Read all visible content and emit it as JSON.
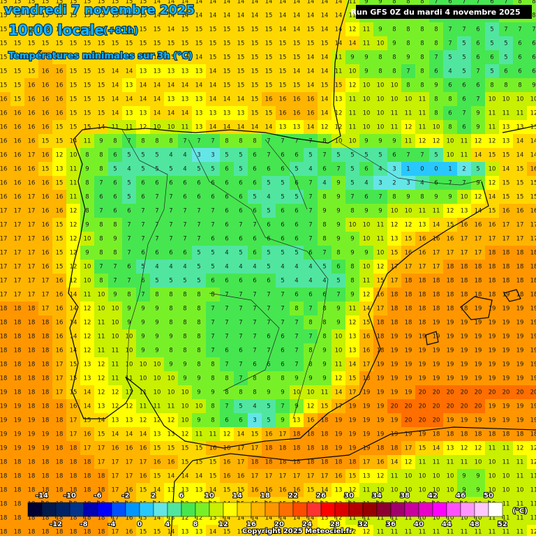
{
  "header": {
    "title": "vendredi 7 novembre 2025",
    "time": "10:00 locale",
    "lead": "(+81h)",
    "subtitle": "Températures minimales sur 3h (°C)",
    "run": "Run GFS 0Z du mardi 4 novembre 2025"
  },
  "colorbar": {
    "lim": [
      -16,
      52
    ],
    "unit": "(°C)",
    "ticks_top": [
      -14,
      -10,
      -6,
      -2,
      2,
      6,
      10,
      14,
      18,
      22,
      26,
      30,
      34,
      38,
      42,
      46,
      50
    ],
    "ticks_bottom": [
      -12,
      -8,
      -4,
      0,
      4,
      8,
      12,
      16,
      20,
      24,
      28,
      32,
      36,
      40,
      44,
      48,
      52
    ],
    "colors": [
      "#000033",
      "#001a4d",
      "#002266",
      "#00338a",
      "#0000b4",
      "#0000ff",
      "#0050ff",
      "#0096ff",
      "#28c8ff",
      "#64e6e6",
      "#50e6a0",
      "#46e650",
      "#78f028",
      "#c8f000",
      "#ffff00",
      "#ffd700",
      "#ffb400",
      "#ff9600",
      "#ff6e00",
      "#ff4b00",
      "#ff3232",
      "#ff0000",
      "#dc0000",
      "#b40000",
      "#960000",
      "#8c0032",
      "#a0006e",
      "#c800a0",
      "#e600c8",
      "#ff00ff",
      "#ff50ff",
      "#ff96ff",
      "#ffc8ff",
      "#ffffff"
    ]
  },
  "credit": "Copyright 2025 Meteociel.fr",
  "grid": {
    "rows": [
      [
        15,
        15,
        15,
        15,
        15,
        15,
        15,
        15,
        15,
        15,
        15,
        14,
        14,
        14,
        14,
        14,
        14,
        14,
        14,
        14,
        14,
        14,
        14,
        14,
        14,
        11,
        9,
        9,
        8,
        8,
        8,
        7,
        6,
        7,
        7,
        6,
        7,
        8,
        8
      ],
      [
        15,
        15,
        15,
        15,
        15,
        15,
        15,
        15,
        15,
        15,
        15,
        14,
        14,
        14,
        14,
        14,
        14,
        14,
        14,
        15,
        14,
        14,
        14,
        14,
        14,
        11,
        9,
        9,
        8,
        8,
        8,
        7,
        6,
        7,
        7,
        6,
        8,
        8,
        8
      ],
      [
        15,
        15,
        15,
        15,
        15,
        15,
        15,
        15,
        15,
        15,
        15,
        15,
        14,
        15,
        15,
        15,
        15,
        15,
        15,
        15,
        14,
        14,
        15,
        14,
        14,
        12,
        11,
        9,
        8,
        8,
        8,
        8,
        7,
        7,
        6,
        5,
        7,
        7,
        7
      ],
      [
        15,
        15,
        15,
        15,
        15,
        15,
        15,
        15,
        15,
        15,
        15,
        15,
        15,
        15,
        15,
        15,
        15,
        15,
        15,
        15,
        15,
        15,
        15,
        15,
        14,
        14,
        11,
        10,
        9,
        8,
        8,
        8,
        7,
        5,
        6,
        5,
        5,
        6,
        6
      ],
      [
        15,
        15,
        15,
        16,
        15,
        15,
        15,
        15,
        15,
        15,
        15,
        15,
        15,
        14,
        14,
        15,
        15,
        15,
        15,
        15,
        15,
        15,
        14,
        14,
        11,
        9,
        9,
        8,
        8,
        9,
        8,
        7,
        5,
        5,
        6,
        6,
        5,
        6,
        6
      ],
      [
        15,
        15,
        15,
        16,
        16,
        15,
        15,
        15,
        14,
        14,
        13,
        13,
        13,
        13,
        13,
        14,
        15,
        15,
        15,
        15,
        15,
        14,
        14,
        14,
        11,
        10,
        9,
        8,
        8,
        7,
        8,
        6,
        4,
        5,
        7,
        5,
        6,
        6,
        6
      ],
      [
        15,
        15,
        16,
        16,
        16,
        15,
        15,
        15,
        14,
        13,
        14,
        14,
        14,
        14,
        14,
        14,
        15,
        15,
        15,
        15,
        15,
        15,
        14,
        15,
        15,
        12,
        10,
        10,
        10,
        8,
        8,
        9,
        6,
        6,
        6,
        8,
        8,
        8,
        9
      ],
      [
        16,
        15,
        16,
        16,
        16,
        15,
        15,
        15,
        14,
        14,
        14,
        14,
        13,
        13,
        13,
        14,
        14,
        14,
        15,
        16,
        16,
        16,
        16,
        14,
        13,
        11,
        10,
        10,
        10,
        10,
        11,
        8,
        8,
        6,
        7,
        10,
        10,
        10,
        10
      ],
      [
        16,
        16,
        16,
        16,
        16,
        15,
        15,
        15,
        14,
        13,
        13,
        14,
        14,
        14,
        13,
        13,
        13,
        13,
        15,
        15,
        16,
        16,
        16,
        14,
        12,
        11,
        10,
        10,
        11,
        11,
        11,
        8,
        6,
        7,
        9,
        11,
        11,
        11,
        12
      ],
      [
        16,
        16,
        16,
        16,
        15,
        15,
        15,
        14,
        11,
        11,
        12,
        10,
        10,
        11,
        13,
        14,
        14,
        14,
        14,
        14,
        13,
        13,
        14,
        12,
        12,
        11,
        10,
        10,
        11,
        12,
        11,
        10,
        8,
        6,
        9,
        11,
        13,
        13,
        13
      ],
      [
        16,
        16,
        16,
        15,
        15,
        14,
        11,
        9,
        8,
        7,
        8,
        8,
        8,
        7,
        7,
        7,
        8,
        8,
        8,
        7,
        7,
        7,
        7,
        8,
        10,
        10,
        9,
        9,
        9,
        11,
        12,
        12,
        10,
        11,
        12,
        12,
        13,
        14,
        14
      ],
      [
        16,
        16,
        17,
        16,
        12,
        10,
        8,
        8,
        6,
        5,
        5,
        5,
        4,
        4,
        3,
        3,
        5,
        5,
        6,
        7,
        6,
        6,
        5,
        7,
        5,
        5,
        5,
        5,
        6,
        7,
        7,
        5,
        10,
        11,
        14,
        15,
        15,
        14,
        14
      ],
      [
        16,
        16,
        16,
        15,
        13,
        11,
        9,
        8,
        5,
        4,
        5,
        5,
        5,
        4,
        5,
        5,
        6,
        5,
        6,
        6,
        6,
        5,
        4,
        6,
        7,
        5,
        6,
        4,
        3,
        1,
        0,
        0,
        1,
        2,
        5,
        10,
        14,
        15,
        16
      ],
      [
        16,
        16,
        16,
        16,
        15,
        11,
        8,
        7,
        6,
        5,
        6,
        6,
        6,
        6,
        6,
        6,
        6,
        6,
        6,
        5,
        5,
        6,
        7,
        4,
        9,
        5,
        4,
        3,
        2,
        3,
        4,
        6,
        7,
        7,
        9,
        12,
        15,
        15,
        15
      ],
      [
        16,
        16,
        17,
        16,
        16,
        11,
        8,
        6,
        6,
        5,
        6,
        7,
        7,
        6,
        6,
        6,
        6,
        6,
        5,
        4,
        5,
        5,
        7,
        8,
        9,
        7,
        6,
        7,
        8,
        9,
        8,
        9,
        9,
        10,
        12,
        14,
        15,
        15,
        15
      ],
      [
        17,
        17,
        17,
        16,
        16,
        12,
        8,
        7,
        6,
        6,
        7,
        7,
        7,
        7,
        7,
        7,
        6,
        6,
        6,
        5,
        6,
        6,
        7,
        9,
        9,
        8,
        9,
        9,
        10,
        10,
        11,
        11,
        12,
        13,
        14,
        15,
        16,
        16,
        16
      ],
      [
        17,
        17,
        17,
        16,
        15,
        12,
        9,
        8,
        8,
        7,
        7,
        7,
        7,
        7,
        7,
        7,
        6,
        7,
        7,
        6,
        6,
        6,
        7,
        8,
        9,
        10,
        10,
        11,
        12,
        12,
        13,
        14,
        15,
        16,
        16,
        16,
        17,
        17,
        17
      ],
      [
        17,
        17,
        17,
        16,
        15,
        12,
        10,
        8,
        9,
        7,
        7,
        7,
        7,
        7,
        7,
        6,
        6,
        6,
        6,
        6,
        6,
        6,
        7,
        8,
        9,
        9,
        10,
        11,
        13,
        15,
        16,
        16,
        16,
        17,
        17,
        17,
        17,
        17,
        17
      ],
      [
        17,
        17,
        17,
        16,
        15,
        12,
        9,
        8,
        8,
        7,
        6,
        6,
        6,
        6,
        5,
        5,
        4,
        5,
        6,
        5,
        5,
        5,
        6,
        7,
        8,
        9,
        9,
        10,
        15,
        16,
        16,
        17,
        17,
        17,
        17,
        18,
        18,
        18,
        18
      ],
      [
        17,
        17,
        17,
        16,
        15,
        12,
        10,
        7,
        7,
        6,
        5,
        4,
        4,
        4,
        5,
        5,
        4,
        4,
        4,
        5,
        4,
        4,
        4,
        5,
        6,
        8,
        10,
        12,
        17,
        17,
        17,
        17,
        18,
        18,
        18,
        18,
        18,
        18,
        18
      ],
      [
        17,
        17,
        17,
        17,
        16,
        12,
        10,
        8,
        7,
        7,
        6,
        5,
        5,
        5,
        5,
        6,
        6,
        6,
        6,
        6,
        5,
        4,
        4,
        4,
        5,
        8,
        11,
        15,
        17,
        18,
        18,
        18,
        18,
        18,
        18,
        18,
        18,
        18,
        18
      ],
      [
        17,
        17,
        17,
        17,
        16,
        14,
        11,
        10,
        9,
        8,
        7,
        8,
        8,
        8,
        8,
        8,
        7,
        7,
        7,
        7,
        7,
        6,
        6,
        6,
        7,
        9,
        12,
        16,
        18,
        18,
        18,
        18,
        18,
        18,
        18,
        18,
        19,
        18,
        18
      ],
      [
        18,
        18,
        18,
        17,
        16,
        14,
        12,
        10,
        10,
        9,
        9,
        9,
        8,
        8,
        8,
        7,
        7,
        7,
        7,
        7,
        7,
        8,
        7,
        8,
        9,
        11,
        14,
        17,
        18,
        18,
        18,
        18,
        18,
        18,
        19,
        19,
        19,
        19,
        19
      ],
      [
        18,
        18,
        18,
        18,
        16,
        14,
        12,
        11,
        10,
        9,
        9,
        9,
        8,
        8,
        8,
        7,
        7,
        7,
        7,
        7,
        7,
        7,
        8,
        8,
        9,
        12,
        15,
        18,
        18,
        18,
        18,
        19,
        19,
        19,
        19,
        19,
        19,
        19,
        19
      ],
      [
        18,
        18,
        18,
        18,
        16,
        14,
        12,
        11,
        10,
        10,
        9,
        9,
        9,
        8,
        8,
        7,
        7,
        7,
        7,
        6,
        6,
        7,
        7,
        8,
        10,
        13,
        16,
        18,
        19,
        19,
        19,
        19,
        19,
        19,
        19,
        19,
        19,
        19,
        19
      ],
      [
        18,
        18,
        18,
        18,
        16,
        14,
        12,
        11,
        11,
        10,
        9,
        9,
        8,
        8,
        8,
        7,
        6,
        6,
        7,
        7,
        6,
        7,
        8,
        9,
        10,
        13,
        16,
        18,
        19,
        19,
        19,
        19,
        19,
        19,
        19,
        19,
        19,
        19,
        19
      ],
      [
        18,
        18,
        18,
        18,
        17,
        15,
        13,
        12,
        11,
        10,
        10,
        10,
        9,
        9,
        8,
        8,
        7,
        7,
        6,
        6,
        6,
        7,
        8,
        9,
        11,
        14,
        17,
        19,
        19,
        19,
        19,
        19,
        19,
        19,
        19,
        19,
        19,
        19,
        19
      ],
      [
        18,
        18,
        18,
        18,
        17,
        15,
        13,
        12,
        11,
        11,
        10,
        10,
        10,
        9,
        9,
        8,
        8,
        7,
        8,
        8,
        8,
        9,
        9,
        9,
        12,
        15,
        18,
        19,
        19,
        19,
        19,
        19,
        19,
        19,
        19,
        19,
        19,
        19,
        19
      ],
      [
        19,
        18,
        18,
        18,
        17,
        15,
        14,
        12,
        12,
        11,
        11,
        10,
        10,
        10,
        9,
        9,
        8,
        8,
        8,
        9,
        9,
        10,
        10,
        11,
        14,
        17,
        19,
        19,
        19,
        19,
        20,
        20,
        20,
        20,
        20,
        20,
        20,
        20,
        20
      ],
      [
        19,
        19,
        18,
        18,
        18,
        16,
        14,
        13,
        12,
        12,
        11,
        11,
        11,
        10,
        10,
        8,
        7,
        5,
        4,
        5,
        7,
        9,
        12,
        15,
        17,
        19,
        19,
        19,
        20,
        20,
        20,
        20,
        20,
        20,
        20,
        19,
        19,
        19,
        19
      ],
      [
        19,
        19,
        19,
        18,
        18,
        17,
        15,
        14,
        13,
        13,
        12,
        12,
        12,
        10,
        9,
        8,
        6,
        6,
        3,
        5,
        9,
        13,
        16,
        18,
        19,
        19,
        19,
        19,
        19,
        20,
        20,
        20,
        19,
        19,
        19,
        19,
        19,
        19,
        19
      ],
      [
        19,
        19,
        19,
        19,
        18,
        17,
        16,
        15,
        14,
        14,
        14,
        13,
        13,
        12,
        11,
        11,
        12,
        14,
        15,
        16,
        17,
        18,
        18,
        18,
        19,
        19,
        19,
        19,
        19,
        19,
        19,
        18,
        18,
        18,
        18,
        18,
        18,
        18,
        18
      ],
      [
        19,
        19,
        19,
        19,
        18,
        18,
        17,
        17,
        16,
        16,
        16,
        15,
        15,
        15,
        15,
        16,
        16,
        17,
        17,
        18,
        18,
        18,
        18,
        18,
        19,
        19,
        19,
        18,
        18,
        17,
        15,
        14,
        13,
        12,
        12,
        11,
        11,
        12,
        12
      ],
      [
        18,
        18,
        18,
        18,
        18,
        18,
        18,
        17,
        17,
        17,
        17,
        16,
        16,
        15,
        15,
        15,
        16,
        17,
        18,
        18,
        18,
        18,
        18,
        18,
        18,
        18,
        17,
        16,
        14,
        12,
        11,
        11,
        11,
        11,
        10,
        10,
        11,
        11,
        12
      ],
      [
        18,
        18,
        18,
        18,
        18,
        18,
        18,
        18,
        17,
        17,
        16,
        15,
        14,
        14,
        14,
        15,
        16,
        16,
        17,
        17,
        17,
        17,
        17,
        17,
        16,
        15,
        13,
        12,
        11,
        10,
        10,
        10,
        10,
        9,
        9,
        10,
        10,
        11,
        11
      ],
      [
        18,
        18,
        18,
        18,
        18,
        18,
        18,
        18,
        17,
        16,
        15,
        14,
        13,
        13,
        13,
        14,
        15,
        15,
        16,
        16,
        16,
        16,
        15,
        14,
        13,
        12,
        11,
        10,
        10,
        10,
        10,
        10,
        10,
        9,
        9,
        10,
        10,
        10,
        11
      ],
      [
        18,
        18,
        18,
        18,
        18,
        18,
        18,
        18,
        17,
        16,
        15,
        14,
        13,
        13,
        13,
        13,
        14,
        15,
        15,
        15,
        15,
        15,
        14,
        13,
        12,
        11,
        11,
        10,
        10,
        10,
        10,
        10,
        10,
        10,
        10,
        10,
        11,
        11,
        11
      ],
      [
        18,
        18,
        18,
        18,
        18,
        18,
        18,
        18,
        17,
        16,
        15,
        14,
        13,
        12,
        12,
        13,
        14,
        14,
        14,
        14,
        14,
        14,
        14,
        13,
        12,
        11,
        11,
        11,
        11,
        11,
        10,
        10,
        10,
        10,
        10,
        11,
        11,
        11,
        11
      ],
      [
        18,
        18,
        18,
        18,
        18,
        18,
        18,
        18,
        17,
        16,
        15,
        15,
        14,
        13,
        13,
        14,
        15,
        15,
        15,
        15,
        14,
        14,
        14,
        13,
        12,
        12,
        12,
        11,
        11,
        11,
        11,
        11,
        11,
        11,
        11,
        11,
        11,
        11,
        12
      ]
    ]
  }
}
